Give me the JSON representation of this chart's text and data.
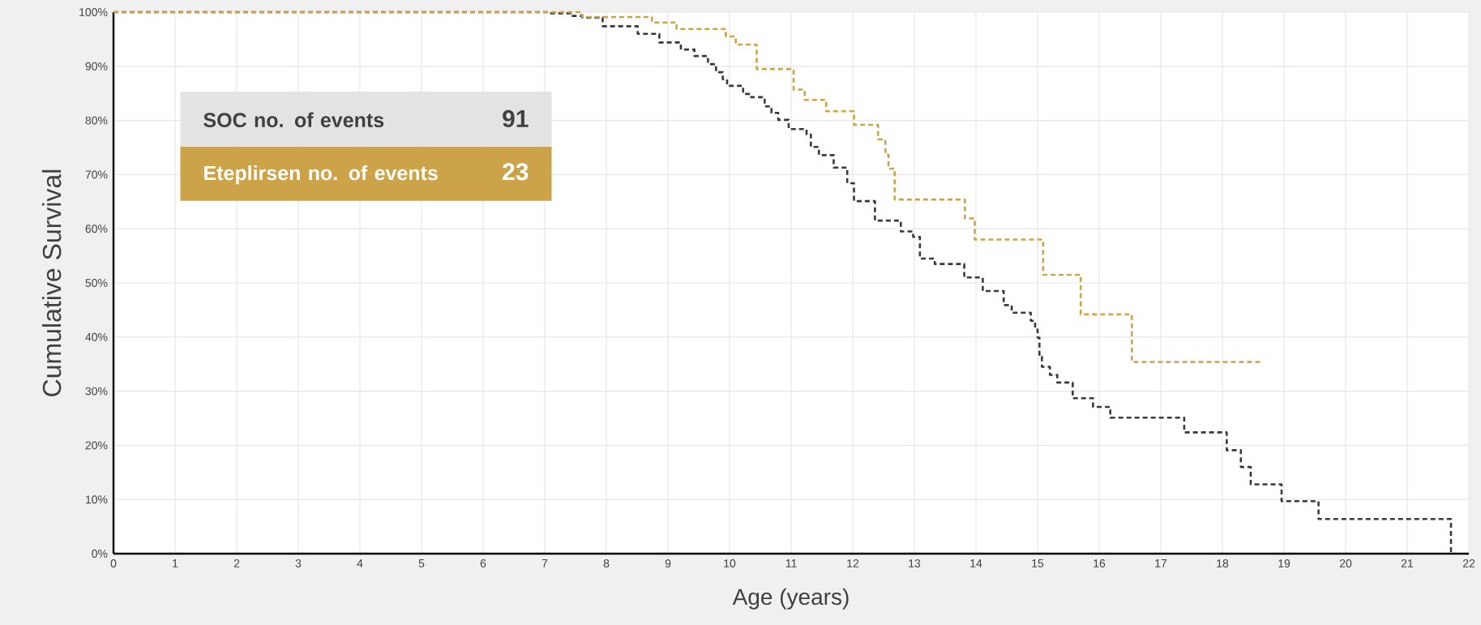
{
  "chart_data": {
    "type": "step",
    "xlabel": "Age (years)",
    "ylabel": "Cumulative Survival",
    "xlim": [
      0,
      22
    ],
    "ylim": [
      0,
      100
    ],
    "xticks": [
      0,
      1,
      2,
      3,
      4,
      5,
      6,
      7,
      8,
      9,
      10,
      11,
      12,
      13,
      14,
      15,
      16,
      17,
      18,
      19,
      20,
      21,
      22
    ],
    "yticks": [
      {
        "value": 0,
        "label": "0%"
      },
      {
        "value": 10,
        "label": "10%"
      },
      {
        "value": 20,
        "label": "20%"
      },
      {
        "value": 30,
        "label": "30%"
      },
      {
        "value": 40,
        "label": "40%"
      },
      {
        "value": 50,
        "label": "50%"
      },
      {
        "value": 60,
        "label": "60%"
      },
      {
        "value": 70,
        "label": "70%"
      },
      {
        "value": 80,
        "label": "80%"
      },
      {
        "value": 90,
        "label": "90%"
      },
      {
        "value": 100,
        "label": "100%"
      }
    ],
    "grid": true,
    "line_style": "dashed",
    "series": [
      {
        "color": "#3a3a3a",
        "x": [
          0,
          7.1,
          7.43,
          7.61,
          7.94,
          8.51,
          8.86,
          9.21,
          9.43,
          9.65,
          9.78,
          9.89,
          9.96,
          10.22,
          10.35,
          10.57,
          10.68,
          10.79,
          10.96,
          11.25,
          11.32,
          11.45,
          11.69,
          11.91,
          12.02,
          12.36,
          12.78,
          12.98,
          13.09,
          13.33,
          13.81,
          14.11,
          14.45,
          14.58,
          14.89,
          14.96,
          15.0,
          15.03,
          15.07,
          15.2,
          15.32,
          15.57,
          15.9,
          16.18,
          17.38,
          18.07,
          18.3,
          18.46,
          18.96,
          19.56,
          21.71
        ],
        "values": [
          100,
          99.8,
          99.3,
          99.0,
          97.4,
          96.0,
          94.4,
          93.1,
          91.9,
          90.4,
          88.9,
          87.6,
          86.4,
          84.9,
          84.3,
          82.6,
          81.4,
          80.1,
          78.4,
          77.4,
          75.1,
          73.6,
          71.3,
          68.4,
          65.1,
          61.5,
          59.5,
          58.5,
          54.5,
          53.5,
          51.0,
          48.5,
          45.9,
          44.5,
          43.0,
          41.4,
          39.9,
          36.4,
          34.5,
          33.0,
          31.6,
          28.7,
          27.1,
          25.1,
          22.4,
          19.1,
          16.0,
          12.8,
          9.7,
          6.4,
          0
        ]
      },
      {
        "color": "#cda349",
        "x": [
          0,
          7.61,
          8.74,
          9.14,
          9.94,
          10.1,
          10.44,
          11.04,
          11.22,
          11.57,
          12.02,
          12.41,
          12.53,
          12.58,
          12.68,
          13.82,
          13.98,
          15.09,
          15.7,
          16.53,
          18.63
        ],
        "values": [
          100,
          99.1,
          98.1,
          96.9,
          95.5,
          94.0,
          89.5,
          85.7,
          83.8,
          81.7,
          79.2,
          76.5,
          73.7,
          71.1,
          65.4,
          61.9,
          58.0,
          51.5,
          44.2,
          35.4,
          35.4
        ]
      }
    ],
    "annotations": [
      "SOC no. of events",
      "91",
      "Eteplirsen no. of events",
      "23"
    ]
  }
}
